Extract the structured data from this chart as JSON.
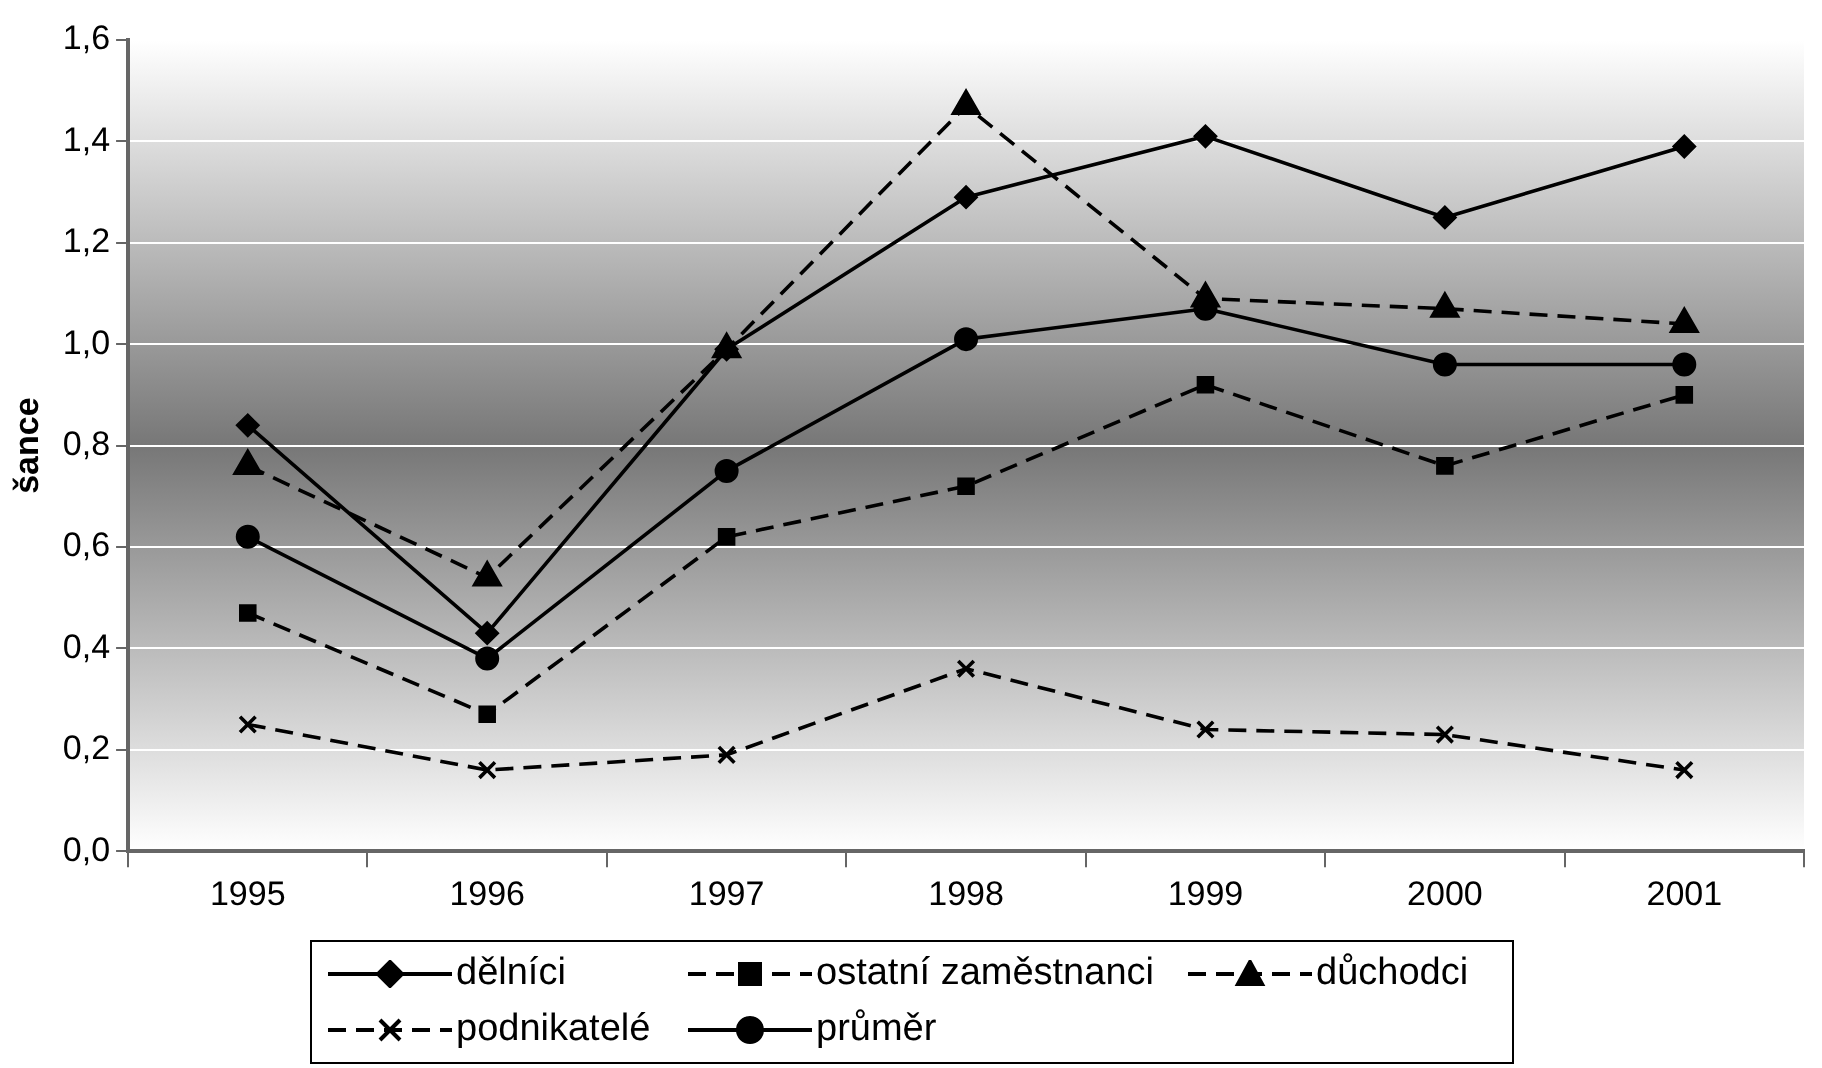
{
  "chart_data": {
    "type": "line",
    "ylabel": "šance",
    "categories": [
      "1995",
      "1996",
      "1997",
      "1998",
      "1999",
      "2000",
      "2001"
    ],
    "series": [
      {
        "name": "dělníci",
        "color": "#000000",
        "marker": "diamond",
        "line_style": "solid",
        "values": [
          0.84,
          0.43,
          0.99,
          1.29,
          1.41,
          1.25,
          1.39
        ]
      },
      {
        "name": "ostatní zaměstnanci",
        "color": "#000000",
        "marker": "square",
        "line_style": "dashed",
        "values": [
          0.47,
          0.27,
          0.62,
          0.72,
          0.92,
          0.76,
          0.9
        ]
      },
      {
        "name": "důchodci",
        "color": "#000000",
        "marker": "triangle",
        "line_style": "dashed",
        "values": [
          0.76,
          0.54,
          0.99,
          1.47,
          1.09,
          1.07,
          1.04
        ]
      },
      {
        "name": "podnikatelé",
        "color": "#000000",
        "marker": "cross",
        "line_style": "dashed",
        "values": [
          0.25,
          0.16,
          0.19,
          0.36,
          0.24,
          0.23,
          0.16
        ]
      },
      {
        "name": "průměr",
        "color": "#000000",
        "marker": "circle",
        "line_style": "solid",
        "values": [
          0.62,
          0.38,
          0.75,
          1.01,
          1.07,
          0.96,
          0.96
        ]
      }
    ],
    "ylim": [
      0,
      1.6
    ],
    "yticks": [
      {
        "value": 0,
        "label": "0,0"
      },
      {
        "value": 0.2,
        "label": "0,2"
      },
      {
        "value": 0.4,
        "label": "0,4"
      },
      {
        "value": 0.6,
        "label": "0,6"
      },
      {
        "value": 0.8,
        "label": "0,8"
      },
      {
        "value": 1.0,
        "label": "1,0"
      },
      {
        "value": 1.2,
        "label": "1,2"
      },
      {
        "value": 1.4,
        "label": "1,4"
      },
      {
        "value": 1.6,
        "label": "1,6"
      }
    ],
    "grid": "y",
    "legend": "bottom"
  }
}
